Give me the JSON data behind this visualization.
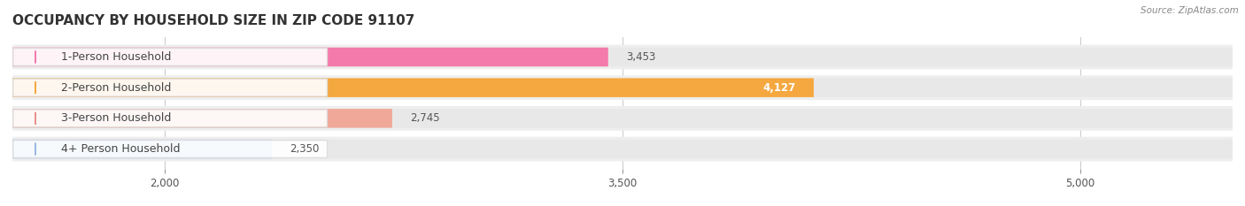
{
  "title": "OCCUPANCY BY HOUSEHOLD SIZE IN ZIP CODE 91107",
  "source": "Source: ZipAtlas.com",
  "categories": [
    "1-Person Household",
    "2-Person Household",
    "3-Person Household",
    "4+ Person Household"
  ],
  "values": [
    3453,
    4127,
    2745,
    2350
  ],
  "bar_colors": [
    "#f47aab",
    "#f5a840",
    "#f0a898",
    "#a8c4e8"
  ],
  "dot_colors": [
    "#f47aab",
    "#f5a840",
    "#e8928a",
    "#9ab8e0"
  ],
  "xmin": 1500,
  "xmax": 5500,
  "xticks": [
    2000,
    3500,
    5000
  ],
  "background_color": "#ffffff",
  "row_bg_color": "#eeeeee",
  "bar_track_color": "#e8e8e8",
  "label_box_color": "#ffffff",
  "value_inside_color": "#ffffff",
  "value_outside_color": "#555555",
  "grid_color": "#cccccc",
  "title_color": "#333333",
  "source_color": "#888888",
  "label_color": "#444444"
}
